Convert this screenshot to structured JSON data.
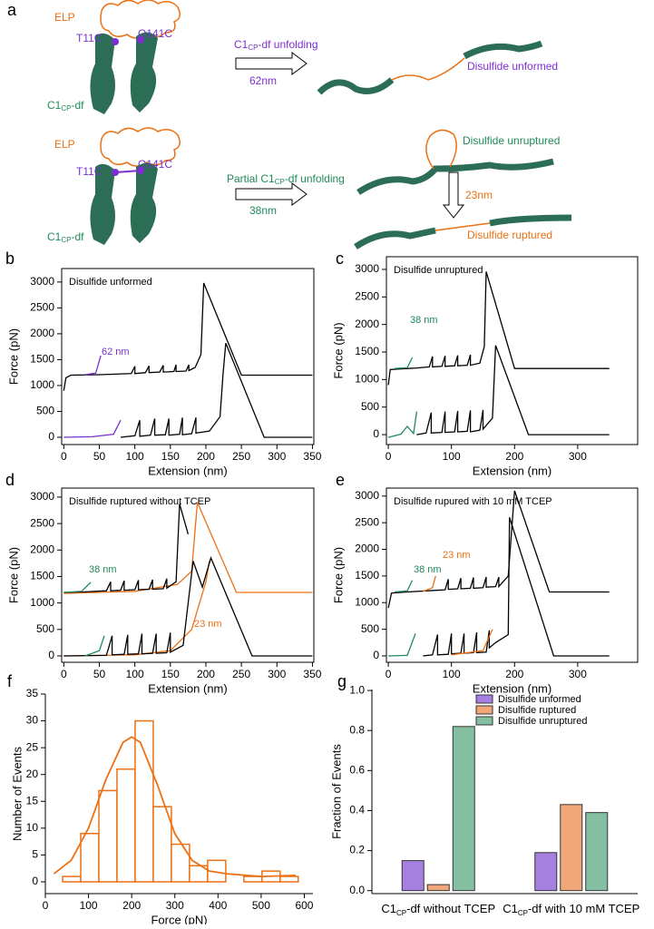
{
  "panel_labels": [
    "a",
    "b",
    "c",
    "d",
    "e",
    "f",
    "g"
  ],
  "diagram": {
    "row1": {
      "elp": "ELP",
      "t11c": "T11C",
      "q141c": "Q141C",
      "domain": [
        "C1",
        "CP",
        "-df"
      ],
      "arrow_label": [
        "C1",
        "CP",
        "-df unfolding"
      ],
      "length": "62nm",
      "state": "Disulfide unformed"
    },
    "row2": {
      "elp": "ELP",
      "t11c": "T11C",
      "q141c": "Q141C",
      "domain": [
        "C1",
        "CP",
        "-df"
      ],
      "arrow_label": [
        "Partial C1",
        "CP",
        "-df unfolding"
      ],
      "length": "38nm",
      "state": "Disulfide unruptured",
      "length2": "23nm",
      "state2": "Disulfide ruptured"
    }
  },
  "chart_data": [
    {
      "type": "line",
      "title": "Disulfide unformed",
      "xlabel": "Extension (nm)",
      "ylabel": "Force (pN)",
      "xlim": [
        -3,
        352
      ],
      "ylim": [
        -140,
        3260
      ],
      "xticks": [
        0,
        50,
        100,
        150,
        200,
        250,
        300,
        350
      ],
      "yticks": [
        0,
        500,
        1000,
        1500,
        2000,
        2500,
        3000
      ],
      "series": [
        {
          "color": "#000000",
          "x": [
            0,
            3,
            10,
            50,
            95,
            100,
            100,
            115,
            120,
            120,
            135,
            140,
            140,
            155,
            158,
            158,
            172,
            176,
            176,
            185,
            193,
            197,
            250,
            260,
            350
          ],
          "values": [
            900,
            1150,
            1200,
            1210,
            1230,
            1370,
            1230,
            1250,
            1380,
            1250,
            1260,
            1390,
            1260,
            1270,
            1400,
            1270,
            1280,
            1400,
            1290,
            1350,
            1600,
            2980,
            1200,
            1200,
            1200
          ]
        },
        {
          "color": "#7b2fd0",
          "x": [
            30,
            45,
            52
          ],
          "values": [
            1210,
            1240,
            1580
          ]
        },
        {
          "color": "#000000",
          "x": [
            80,
            100,
            107,
            107,
            122,
            128,
            128,
            143,
            148,
            148,
            163,
            167,
            167,
            180,
            186,
            186,
            205,
            220,
            224,
            228,
            282,
            350
          ],
          "values": [
            0,
            30,
            330,
            20,
            40,
            360,
            40,
            50,
            360,
            40,
            60,
            380,
            50,
            70,
            380,
            80,
            120,
            400,
            1200,
            1820,
            0,
            0
          ]
        },
        {
          "color": "#7b2fd0",
          "x": [
            0,
            40,
            70,
            80
          ],
          "values": [
            0,
            10,
            60,
            330
          ]
        }
      ],
      "annotations": [
        {
          "text": "62 nm",
          "color": "#7b2fd0"
        }
      ]
    },
    {
      "type": "line",
      "title": "Disulfide unruptured",
      "xlabel": "Extension (nm)",
      "ylabel": "Force (pN)",
      "xlim": [
        -3,
        395
      ],
      "ylim": [
        -180,
        3230
      ],
      "xticks": [
        0,
        100,
        200,
        300
      ],
      "yticks": [
        0,
        500,
        1000,
        1500,
        2000,
        2500,
        3000
      ],
      "series": [
        {
          "color": "#000000",
          "x": [
            0,
            3,
            30,
            45,
            65,
            70,
            70,
            85,
            90,
            90,
            105,
            110,
            110,
            125,
            130,
            130,
            145,
            152,
            155,
            200,
            350
          ],
          "values": [
            900,
            1180,
            1200,
            1210,
            1230,
            1420,
            1230,
            1240,
            1430,
            1240,
            1250,
            1440,
            1250,
            1260,
            1450,
            1260,
            1300,
            1600,
            2960,
            1200,
            1200
          ]
        },
        {
          "color": "#1f8a5b",
          "x": [
            10,
            30,
            38
          ],
          "values": [
            1200,
            1215,
            1400
          ]
        },
        {
          "color": "#000000",
          "x": [
            45,
            60,
            68,
            68,
            85,
            90,
            90,
            105,
            110,
            110,
            125,
            130,
            130,
            145,
            150,
            150,
            165,
            170,
            222,
            350
          ],
          "values": [
            0,
            30,
            400,
            30,
            40,
            420,
            40,
            50,
            430,
            50,
            60,
            440,
            50,
            80,
            450,
            100,
            300,
            1620,
            0,
            0
          ]
        },
        {
          "color": "#1f8a5b",
          "x": [
            0,
            20,
            30,
            40,
            45
          ],
          "values": [
            -50,
            10,
            150,
            20,
            420
          ]
        }
      ],
      "annotations": [
        {
          "text": "38 nm",
          "color": "#1f8a5b"
        }
      ]
    },
    {
      "type": "line",
      "title": "Disulfide ruptured without TCEP",
      "xlabel": "Extension (nm)",
      "ylabel": "Force (pN)",
      "xlim": [
        -3,
        352
      ],
      "ylim": [
        -120,
        3170
      ],
      "xticks": [
        0,
        50,
        100,
        150,
        200,
        250,
        300,
        350
      ],
      "yticks": [
        0,
        500,
        1000,
        1500,
        2000,
        2500,
        3000
      ],
      "series": [
        {
          "color": "#ec7014",
          "x": [
            0,
            100,
            160,
            180,
            188,
            243,
            350
          ],
          "values": [
            1180,
            1220,
            1350,
            1600,
            2900,
            1200,
            1200
          ]
        },
        {
          "color": "#000000",
          "x": [
            0,
            30,
            60,
            66,
            66,
            80,
            85,
            85,
            100,
            105,
            105,
            120,
            125,
            125,
            140,
            145,
            145,
            158,
            163,
            175
          ],
          "values": [
            1200,
            1210,
            1230,
            1400,
            1230,
            1240,
            1420,
            1240,
            1250,
            1430,
            1250,
            1260,
            1440,
            1260,
            1270,
            1460,
            1280,
            1400,
            2870,
            2300
          ]
        },
        {
          "color": "#1f8a5b",
          "x": [
            0,
            25,
            38
          ],
          "values": [
            1200,
            1220,
            1390
          ]
        },
        {
          "color": "#ec7014",
          "x": [
            0,
            100,
            150,
            180,
            200,
            205
          ],
          "values": [
            0,
            20,
            100,
            500,
            1400,
            1800
          ]
        },
        {
          "color": "#000000",
          "x": [
            0,
            60,
            68,
            68,
            85,
            90,
            90,
            105,
            110,
            110,
            125,
            130,
            130,
            145,
            150,
            150,
            168,
            182,
            195,
            207,
            265,
            350
          ],
          "values": [
            0,
            10,
            380,
            20,
            30,
            400,
            30,
            40,
            420,
            40,
            50,
            420,
            50,
            60,
            440,
            70,
            200,
            1790,
            1300,
            1850,
            0,
            0
          ]
        },
        {
          "color": "#1f8a5b",
          "x": [
            30,
            50,
            57
          ],
          "values": [
            0,
            100,
            380
          ]
        }
      ],
      "annotations": [
        {
          "text": "38 nm",
          "color": "#1f8a5b"
        },
        {
          "text": "23 nm",
          "color": "#ec7014"
        }
      ]
    },
    {
      "type": "line",
      "title": "Disulfide rupured with 10 mM TCEP",
      "xlabel": "Extension (nm)",
      "ylabel": "Force (pN)",
      "xlim": [
        -3,
        395
      ],
      "ylim": [
        -120,
        3150
      ],
      "xticks": [
        0,
        100,
        200,
        300
      ],
      "yticks": [
        0,
        500,
        1000,
        1500,
        2000,
        2500,
        3000
      ],
      "series": [
        {
          "color": "#000000",
          "x": [
            0,
            5,
            30,
            75,
            90,
            95,
            95,
            110,
            115,
            115,
            130,
            135,
            135,
            150,
            155,
            155,
            170,
            175,
            175,
            190,
            200,
            255,
            350
          ],
          "values": [
            900,
            1180,
            1200,
            1230,
            1240,
            1440,
            1250,
            1260,
            1460,
            1260,
            1270,
            1470,
            1270,
            1280,
            1480,
            1290,
            1300,
            1480,
            1300,
            1500,
            3100,
            1200,
            1200
          ]
        },
        {
          "color": "#1f8a5b",
          "x": [
            10,
            30,
            38
          ],
          "values": [
            1200,
            1220,
            1420
          ]
        },
        {
          "color": "#ec7014",
          "x": [
            55,
            70,
            75
          ],
          "values": [
            1210,
            1280,
            1500
          ]
        },
        {
          "color": "#000000",
          "x": [
            55,
            70,
            78,
            78,
            95,
            100,
            100,
            115,
            120,
            120,
            135,
            140,
            140,
            155,
            160,
            160,
            170,
            190,
            192,
            262,
            350
          ],
          "values": [
            0,
            20,
            400,
            20,
            30,
            420,
            40,
            50,
            420,
            50,
            60,
            440,
            60,
            70,
            480,
            150,
            250,
            400,
            2600,
            0,
            0
          ]
        },
        {
          "color": "#1f8a5b",
          "x": [
            0,
            30,
            43
          ],
          "values": [
            0,
            10,
            420
          ]
        },
        {
          "color": "#ec7014",
          "x": [
            100,
            150,
            165
          ],
          "values": [
            20,
            100,
            500
          ]
        }
      ],
      "annotations": [
        {
          "text": "38 nm",
          "color": "#1f8a5b"
        },
        {
          "text": "23 nm",
          "color": "#ec7014"
        }
      ]
    },
    {
      "type": "histogram",
      "xlabel": "Force (pN)",
      "ylabel": "Number of Events",
      "xlim": [
        0,
        620
      ],
      "ylim": [
        -2.2,
        35
      ],
      "xticks": [
        0,
        100,
        200,
        300,
        400,
        500,
        600
      ],
      "yticks": [
        0,
        5,
        10,
        15,
        20,
        25,
        30,
        35
      ],
      "color": "#ec7014",
      "bins": [
        40,
        82,
        124,
        166,
        208,
        250,
        292,
        334,
        376,
        418,
        460,
        502,
        544,
        586
      ],
      "values": [
        1,
        9,
        17,
        21,
        30,
        14,
        7,
        3,
        4,
        0,
        1,
        2,
        1
      ],
      "fit": {
        "x": [
          20,
          60,
          100,
          140,
          180,
          200,
          220,
          260,
          300,
          340,
          380,
          420,
          500,
          580
        ],
        "values": [
          1.5,
          4,
          10,
          19,
          26,
          27,
          26,
          18,
          9,
          4,
          2,
          1.5,
          1,
          1.2
        ]
      }
    },
    {
      "type": "bar",
      "ylabel": "Fraction of Events",
      "ylim": [
        -0.015,
        1.005
      ],
      "yticks": [
        {
          "value": 0,
          "label": "0.0"
        },
        {
          "value": 0.2,
          "label": "0.2"
        },
        {
          "value": 0.4,
          "label": "0.4"
        },
        {
          "value": 0.6,
          "label": "0.6"
        },
        {
          "value": 0.8,
          "label": "0.8"
        },
        {
          "value": 1,
          "label": "1.0"
        }
      ],
      "categories": [
        [
          "C1",
          "CP",
          "-df without TCEP"
        ],
        [
          "C1",
          "CP",
          "-df with 10 mM TCEP"
        ]
      ],
      "series": [
        {
          "name": "Disulfide unformed",
          "color": "#a77fe0",
          "values": [
            0.15,
            0.19
          ]
        },
        {
          "name": "Disulfide ruptured",
          "color": "#f2a77a",
          "values": [
            0.03,
            0.43
          ]
        },
        {
          "name": "Disulfide unruptured",
          "color": "#84bfa1",
          "values": [
            0.82,
            0.39
          ]
        }
      ],
      "legend": "upper right"
    }
  ]
}
